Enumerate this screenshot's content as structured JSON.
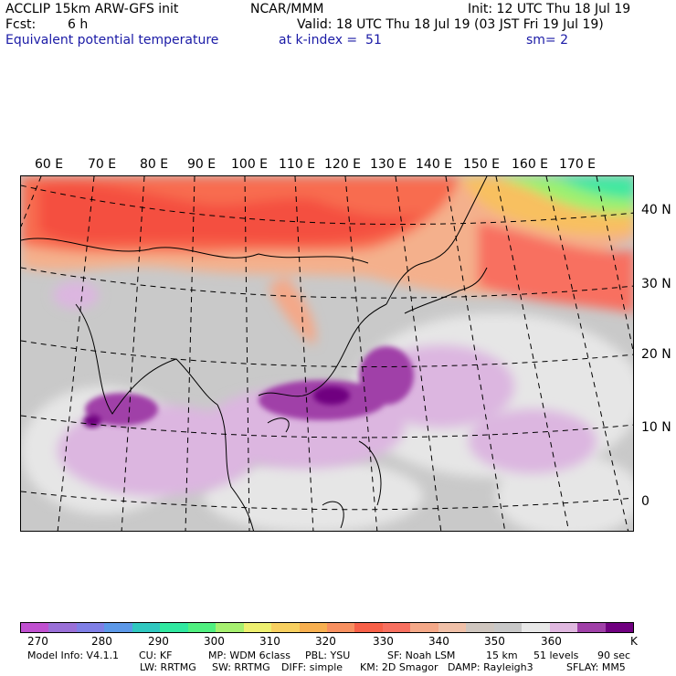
{
  "header": {
    "model": "ACCLIP 15km ARW-GFS init",
    "org": "NCAR/MMM",
    "init": "Init: 12 UTC Thu 18 Jul 19",
    "fcst_label": "Fcst:",
    "fcst_value": "6 h",
    "valid": "Valid: 18 UTC Thu 18 Jul 19 (03 JST Fri 19 Jul 19)",
    "field": "Equivalent potential temperature",
    "level": "at k-index =  51",
    "smoothing": "sm= 2"
  },
  "lon_labels": [
    "60 E",
    "70 E",
    "80 E",
    "90 E",
    "100 E",
    "110 E",
    "120 E",
    "130 E",
    "140 E",
    "150 E",
    "160 E",
    "170 E"
  ],
  "lat_labels": [
    "40 N",
    "30 N",
    "20 N",
    "10 N",
    "0"
  ],
  "colorbar": {
    "colors": [
      "#c050d0",
      "#9a70d8",
      "#7f7fe6",
      "#5c98e8",
      "#2fc8c0",
      "#30e8a0",
      "#50f080",
      "#a6f070",
      "#eef070",
      "#f8d060",
      "#f8b050",
      "#f89060",
      "#f86048",
      "#f87060",
      "#f4a888",
      "#f0c0a8",
      "#cfc6bf",
      "#c8c8c8",
      "#e8e8e8",
      "#e0b8e0",
      "#a040a8",
      "#700080"
    ],
    "labels": [
      "270",
      "280",
      "290",
      "300",
      "310",
      "320",
      "330",
      "340",
      "350",
      "360"
    ],
    "unit": "K"
  },
  "footer": {
    "line1": [
      "Model Info: V4.1.1",
      "CU: KF",
      "MP: WDM 6class",
      "PBL: YSU",
      "SF: Noah LSM",
      "15 km",
      "51 levels",
      "90 sec"
    ],
    "line2": [
      "LW: RRTMG",
      "SW: RRTMG",
      "DIFF: simple",
      "KM: 2D Smagor",
      "DAMP: Rayleigh3",
      "SFLAY: MM5"
    ]
  }
}
